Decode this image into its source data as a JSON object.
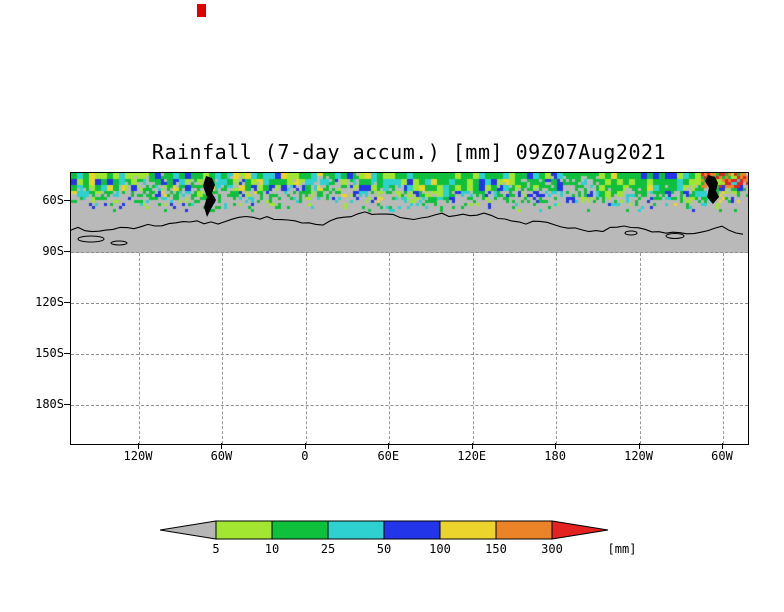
{
  "chart_data": {
    "type": "heatmap",
    "title": "Rainfall (7-day accum.) [mm] 09Z07Aug2021",
    "variable": "Rainfall (7-day accum.)",
    "units": "mm",
    "valid_time": "09Z07Aug2021",
    "x_axis": {
      "tick_labels": [
        "120W",
        "60W",
        "0",
        "60E",
        "120E",
        "180",
        "120W",
        "60W"
      ]
    },
    "y_axis": {
      "tick_labels": [
        "60S",
        "90S",
        "120S",
        "150S",
        "180S"
      ]
    },
    "grid": "dashed",
    "legend": {
      "levels": [
        "5",
        "10",
        "25",
        "50",
        "100",
        "150",
        "300"
      ],
      "units_label": "[mm]",
      "segments": [
        {
          "range": "< 5",
          "color": "#b6b6b6"
        },
        {
          "range": "5-10",
          "color": "#a2e632"
        },
        {
          "range": "10-25",
          "color": "#0fc03c"
        },
        {
          "range": "25-50",
          "color": "#2fd0d0"
        },
        {
          "range": "50-100",
          "color": "#2335e8"
        },
        {
          "range": "100-150",
          "color": "#ecd42d"
        },
        {
          "range": "150-300",
          "color": "#eb8428"
        },
        {
          "range": "> 300",
          "color": "#e32222"
        }
      ]
    },
    "field_colors": {
      "background_land_sea": "#b9b9b9",
      "coastline": "#000000"
    },
    "artifact_mark_color": "#e00000"
  }
}
